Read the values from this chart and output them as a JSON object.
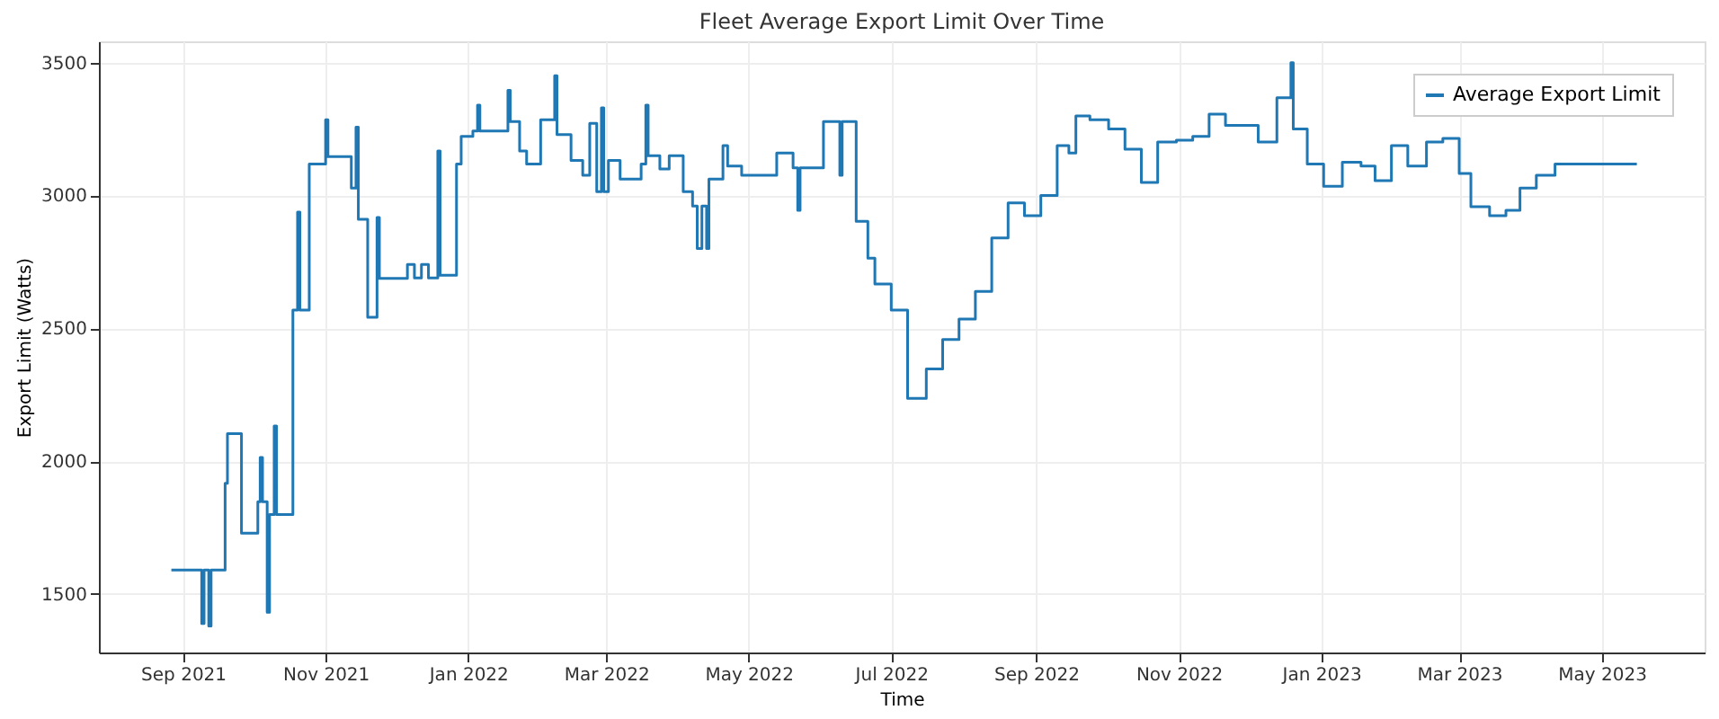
{
  "chart_data": {
    "type": "step",
    "title": "Fleet Average Export Limit Over Time",
    "xlabel": "Time",
    "ylabel": "Export Limit (Watts)",
    "x": [
      "2021-08-27",
      "2021-09-09",
      "2021-09-10",
      "2021-09-12",
      "2021-09-13",
      "2021-09-19",
      "2021-09-20",
      "2021-09-26",
      "2021-10-03",
      "2021-10-04",
      "2021-10-05",
      "2021-10-07",
      "2021-10-08",
      "2021-10-10",
      "2021-10-11",
      "2021-10-18",
      "2021-10-20",
      "2021-10-21",
      "2021-10-25",
      "2021-11-01",
      "2021-11-02",
      "2021-11-12",
      "2021-11-14",
      "2021-11-15",
      "2021-11-19",
      "2021-11-23",
      "2021-11-24",
      "2021-12-06",
      "2021-12-09",
      "2021-12-12",
      "2021-12-15",
      "2021-12-19",
      "2021-12-20",
      "2021-12-27",
      "2021-12-29",
      "2022-01-03",
      "2022-01-05",
      "2022-01-06",
      "2022-01-18",
      "2022-01-19",
      "2022-01-23",
      "2022-01-26",
      "2022-02-01",
      "2022-02-07",
      "2022-02-08",
      "2022-02-14",
      "2022-02-19",
      "2022-02-22",
      "2022-02-25",
      "2022-02-27",
      "2022-02-28",
      "2022-03-02",
      "2022-03-07",
      "2022-03-16",
      "2022-03-18",
      "2022-03-19",
      "2022-03-24",
      "2022-03-28",
      "2022-04-03",
      "2022-04-07",
      "2022-04-09",
      "2022-04-11",
      "2022-04-13",
      "2022-04-14",
      "2022-04-20",
      "2022-04-22",
      "2022-04-28",
      "2022-05-13",
      "2022-05-20",
      "2022-05-22",
      "2022-05-23",
      "2022-06-02",
      "2022-06-09",
      "2022-06-10",
      "2022-06-16",
      "2022-06-21",
      "2022-06-24",
      "2022-07-01",
      "2022-07-08",
      "2022-07-16",
      "2022-07-23",
      "2022-07-30",
      "2022-08-06",
      "2022-08-13",
      "2022-08-20",
      "2022-08-27",
      "2022-09-03",
      "2022-09-10",
      "2022-09-15",
      "2022-09-18",
      "2022-09-24",
      "2022-10-02",
      "2022-10-09",
      "2022-10-16",
      "2022-10-23",
      "2022-10-31",
      "2022-11-07",
      "2022-11-14",
      "2022-11-21",
      "2022-12-05",
      "2022-12-13",
      "2022-12-19",
      "2022-12-20",
      "2022-12-26",
      "2023-01-02",
      "2023-01-10",
      "2023-01-18",
      "2023-01-24",
      "2023-01-31",
      "2023-02-07",
      "2023-02-15",
      "2023-02-22",
      "2023-03-01",
      "2023-03-06",
      "2023-03-14",
      "2023-03-21",
      "2023-03-27",
      "2023-04-03",
      "2023-04-11",
      "2023-05-16"
    ],
    "series": [
      {
        "name": "Average Export Limit",
        "color": "#1f77b4",
        "values": [
          1590,
          1389,
          1590,
          1380,
          1590,
          1917,
          2104,
          1729,
          1847,
          2014,
          1847,
          1431,
          1799,
          2132,
          1799,
          2569,
          2937,
          2569,
          3118,
          3285,
          3146,
          3028,
          3257,
          2910,
          2542,
          2917,
          2688,
          2740,
          2690,
          2740,
          2690,
          3167,
          2700,
          3118,
          3222,
          3243,
          3340,
          3243,
          3396,
          3278,
          3167,
          3118,
          3285,
          3451,
          3229,
          3132,
          3076,
          3271,
          3014,
          3330,
          3014,
          3132,
          3062,
          3118,
          3340,
          3150,
          3100,
          3150,
          3014,
          2960,
          2800,
          2960,
          2800,
          3062,
          3188,
          3111,
          3076,
          3160,
          3104,
          2944,
          3104,
          3278,
          3076,
          3278,
          2903,
          2764,
          2667,
          2569,
          2236,
          2347,
          2458,
          2535,
          2639,
          2840,
          2972,
          2924,
          3000,
          3188,
          3160,
          3299,
          3285,
          3250,
          3174,
          3049,
          3201,
          3208,
          3222,
          3306,
          3264,
          3201,
          3368,
          3500,
          3250,
          3118,
          3035,
          3125,
          3111,
          3056,
          3188,
          3111,
          3201,
          3215,
          3083,
          2958,
          2924,
          2944,
          3028,
          3076,
          3118,
          3118
        ]
      }
    ],
    "xlim": [
      "2021-07-27",
      "2023-06-14"
    ],
    "xticks": [
      {
        "value": "2021-09-01",
        "label": "Sep 2021"
      },
      {
        "value": "2021-11-01",
        "label": "Nov 2021"
      },
      {
        "value": "2022-01-01",
        "label": "Jan 2022"
      },
      {
        "value": "2022-03-01",
        "label": "Mar 2022"
      },
      {
        "value": "2022-05-01",
        "label": "May 2022"
      },
      {
        "value": "2022-07-01",
        "label": "Jul 2022"
      },
      {
        "value": "2022-09-01",
        "label": "Sep 2022"
      },
      {
        "value": "2022-11-01",
        "label": "Nov 2022"
      },
      {
        "value": "2023-01-01",
        "label": "Jan 2023"
      },
      {
        "value": "2023-03-01",
        "label": "Mar 2023"
      },
      {
        "value": "2023-05-01",
        "label": "May 2023"
      }
    ],
    "ylim": [
      1280,
      3580
    ],
    "yticks": [
      1500,
      2000,
      2500,
      3000,
      3500
    ],
    "grid": true,
    "legend": "top right",
    "marker": "none",
    "line_style": "solid"
  }
}
